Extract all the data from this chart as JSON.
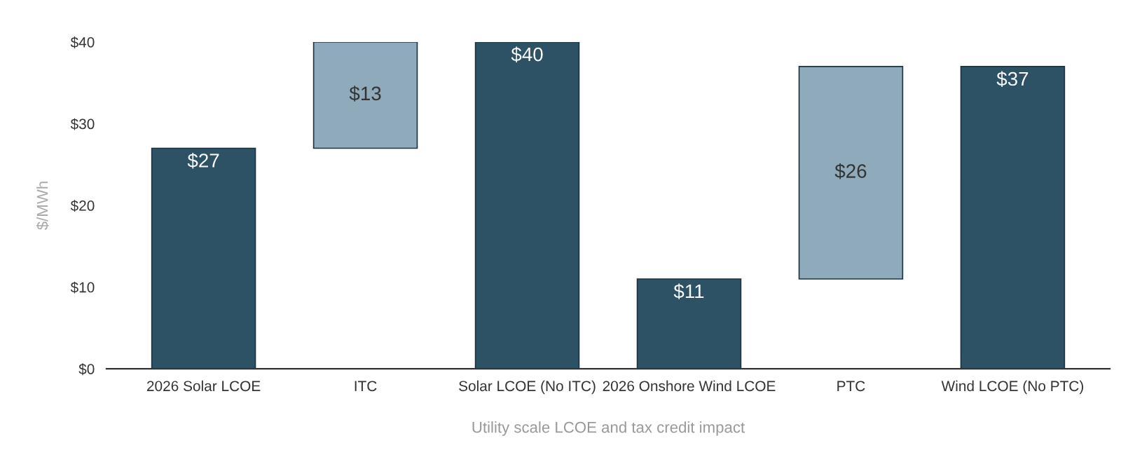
{
  "chart_data": {
    "type": "bar",
    "xlabel": "Utility scale LCOE and tax credit impact",
    "ylabel": "$/MWh",
    "categories": [
      "2026 Solar LCOE",
      "ITC",
      "Solar LCOE (No ITC)",
      "2026 Onshore Wind LCOE",
      "PTC",
      "Wind LCOE (No PTC)"
    ],
    "values": [
      27,
      13,
      40,
      11,
      26,
      37
    ],
    "base": [
      0,
      27,
      0,
      0,
      11,
      0
    ],
    "colors": [
      "#2d5266",
      "#8eaabb",
      "#2d5266",
      "#2d5266",
      "#8eaabb",
      "#2d5266"
    ],
    "value_labels": [
      "$27",
      "$13",
      "$40",
      "$11",
      "$26",
      "$37"
    ],
    "ylim": [
      0,
      40
    ],
    "yticks": [
      {
        "value": 0,
        "label": "$0"
      },
      {
        "value": 10,
        "label": "$10"
      },
      {
        "value": 20,
        "label": "$20"
      },
      {
        "value": 30,
        "label": "$30"
      },
      {
        "value": 40,
        "label": "$40"
      }
    ],
    "grid": false,
    "legend": false
  }
}
